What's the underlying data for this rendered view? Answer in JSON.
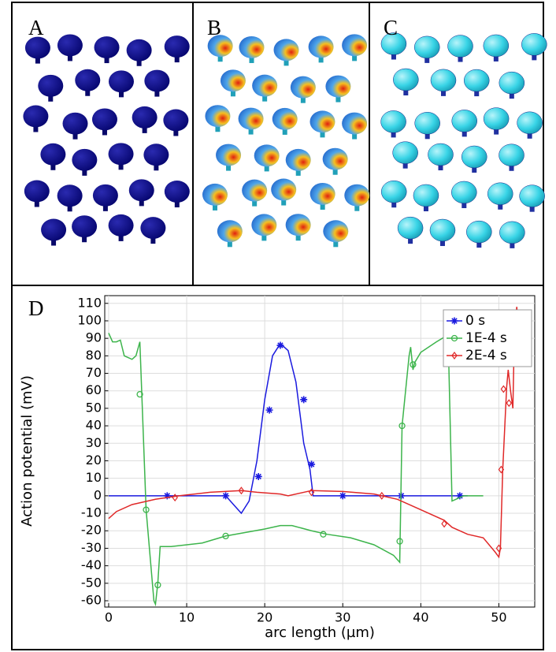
{
  "panels": [
    {
      "label": "A"
    },
    {
      "label": "B"
    },
    {
      "label": "C"
    }
  ],
  "chart_data": {
    "type": "line",
    "panel_label": "D",
    "xlabel": "arc length (µm)",
    "ylabel": "Action potential (mV)",
    "xlim": [
      -0.5,
      54.6
    ],
    "ylim": [
      -63.6,
      114.4
    ],
    "xticks": [
      0,
      10,
      20,
      30,
      40,
      50
    ],
    "yticks": [
      -60,
      -50,
      -40,
      -30,
      -20,
      -10,
      0,
      10,
      20,
      30,
      40,
      50,
      60,
      70,
      80,
      90,
      100,
      110
    ],
    "grid": true,
    "legend": "upper right",
    "series": [
      {
        "name": "0 s",
        "color": "#1a1adf",
        "marker": "asterisk",
        "x": [
          0,
          15,
          16,
          17,
          18,
          19,
          20,
          21,
          22,
          23,
          24,
          25,
          25.8,
          26.2,
          30,
          40,
          46
        ],
        "values": [
          0,
          0,
          -5,
          -10,
          -3,
          20,
          55,
          80,
          87,
          83,
          65,
          30,
          15,
          0,
          0,
          0,
          0
        ],
        "marker_x": [
          7.5,
          15,
          19.2,
          20.6,
          22,
          25,
          26,
          30,
          37.5,
          45
        ],
        "marker_values": [
          0,
          0,
          11,
          49,
          86,
          55,
          18,
          0,
          0,
          0
        ]
      },
      {
        "name": "1E-4 s",
        "color": "#3cb44b",
        "marker": "circle",
        "x": [
          0,
          0.5,
          1,
          1.5,
          2,
          3,
          3.5,
          4,
          4.8,
          5.8,
          6,
          6.3,
          6.6,
          8,
          12,
          15,
          20,
          22,
          23.5,
          26,
          28,
          31,
          34,
          36.5,
          37.3,
          37.6,
          38.5,
          38.7,
          39,
          39.2,
          40,
          42,
          43.5,
          44,
          45.5,
          48
        ],
        "values": [
          93,
          88,
          88,
          89,
          80,
          78,
          80,
          88,
          -8,
          -60,
          -62,
          -50,
          -29,
          -29,
          -27,
          -23,
          -19,
          -17,
          -17,
          -20,
          -22,
          -24,
          -28,
          -34,
          -38,
          40,
          80,
          85,
          72,
          76,
          82,
          88,
          92,
          -3,
          0,
          0
        ],
        "marker_x": [
          4,
          4.8,
          6.3,
          15,
          27.5,
          37.3,
          37.6,
          39
        ],
        "marker_values": [
          58,
          -8,
          -51,
          -23,
          -22,
          -26,
          40,
          75
        ]
      },
      {
        "name": "2E-4 s",
        "color": "#e02828",
        "marker": "diamond",
        "x": [
          0,
          1,
          3,
          6,
          9,
          13,
          17,
          19,
          22,
          23,
          25,
          26,
          30,
          34,
          37,
          40,
          43,
          44,
          46,
          48,
          49.5,
          50,
          50.2,
          50.5,
          51,
          51.2,
          51.5,
          51.8,
          52,
          52.3,
          52.7
        ],
        "values": [
          -13,
          -9,
          -5,
          -2,
          0,
          2,
          3,
          2,
          1,
          0,
          2,
          3,
          2.5,
          1,
          -2,
          -8,
          -14,
          -18,
          -22,
          -24,
          -32,
          -35,
          -30,
          15,
          62,
          72,
          60,
          50,
          95,
          108,
          80
        ],
        "marker_x": [
          8.5,
          17,
          26,
          35,
          43,
          50,
          50.3,
          50.6,
          51.3
        ],
        "marker_values": [
          -1,
          3,
          2,
          0,
          -16,
          -30,
          15,
          61,
          53
        ]
      }
    ]
  }
}
